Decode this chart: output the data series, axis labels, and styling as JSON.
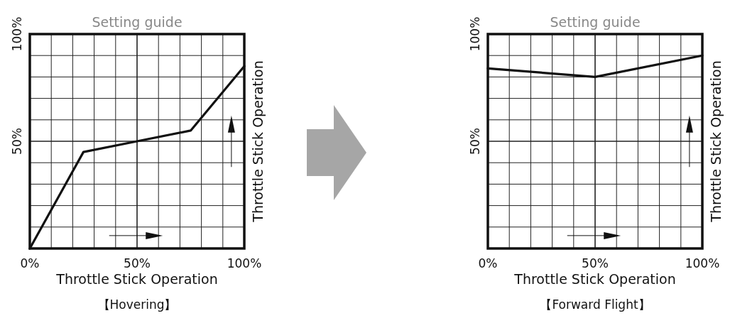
{
  "chart_data": [
    {
      "type": "line",
      "title": "Setting guide",
      "xlabel": "Throttle Stick Operation",
      "ylabel": "Throttle Stick Operation",
      "annotations": [
        "【Hovering】"
      ],
      "x": [
        0,
        25,
        50,
        75,
        100
      ],
      "series": [
        {
          "color": "#111111",
          "values": [
            0,
            45,
            50,
            55,
            85
          ]
        }
      ],
      "xlim": [
        0,
        100
      ],
      "ylim": [
        0,
        100
      ],
      "xticks": [
        {
          "value": 0,
          "label": "0%"
        },
        {
          "value": 10,
          "label": null
        },
        {
          "value": 20,
          "label": null
        },
        {
          "value": 30,
          "label": null
        },
        {
          "value": 40,
          "label": null
        },
        {
          "value": 50,
          "label": "50%"
        },
        {
          "value": 60,
          "label": null
        },
        {
          "value": 70,
          "label": null
        },
        {
          "value": 80,
          "label": null
        },
        {
          "value": 90,
          "label": null
        },
        {
          "value": 100,
          "label": "100%"
        }
      ],
      "yticks": [
        {
          "value": 0,
          "label": null
        },
        {
          "value": 10,
          "label": null
        },
        {
          "value": 20,
          "label": null
        },
        {
          "value": 30,
          "label": null
        },
        {
          "value": 40,
          "label": null
        },
        {
          "value": 50,
          "label": "50%"
        },
        {
          "value": 60,
          "label": null
        },
        {
          "value": 70,
          "label": null
        },
        {
          "value": 80,
          "label": null
        },
        {
          "value": 90,
          "label": null
        },
        {
          "value": 100,
          "label": "100%"
        }
      ],
      "grid": true,
      "line_style": "solid",
      "marker": "none"
    },
    {
      "type": "line",
      "title": "Setting guide",
      "xlabel": "Throttle Stick Operation",
      "ylabel": "Throttle Stick Operation",
      "annotations": [
        "【Forward Flight】"
      ],
      "x": [
        0,
        50,
        100
      ],
      "series": [
        {
          "color": "#111111",
          "values": [
            84,
            80,
            90
          ]
        }
      ],
      "xlim": [
        0,
        100
      ],
      "ylim": [
        0,
        100
      ],
      "xticks": [
        {
          "value": 0,
          "label": "0%"
        },
        {
          "value": 10,
          "label": null
        },
        {
          "value": 20,
          "label": null
        },
        {
          "value": 30,
          "label": null
        },
        {
          "value": 40,
          "label": null
        },
        {
          "value": 50,
          "label": "50%"
        },
        {
          "value": 60,
          "label": null
        },
        {
          "value": 70,
          "label": null
        },
        {
          "value": 80,
          "label": null
        },
        {
          "value": 90,
          "label": null
        },
        {
          "value": 100,
          "label": "100%"
        }
      ],
      "yticks": [
        {
          "value": 0,
          "label": null
        },
        {
          "value": 10,
          "label": null
        },
        {
          "value": 20,
          "label": null
        },
        {
          "value": 30,
          "label": null
        },
        {
          "value": 40,
          "label": null
        },
        {
          "value": 50,
          "label": "50%"
        },
        {
          "value": 60,
          "label": null
        },
        {
          "value": 70,
          "label": null
        },
        {
          "value": 80,
          "label": null
        },
        {
          "value": 90,
          "label": null
        },
        {
          "value": 100,
          "label": "100%"
        }
      ],
      "grid": true,
      "line_style": "solid",
      "marker": "none"
    }
  ]
}
